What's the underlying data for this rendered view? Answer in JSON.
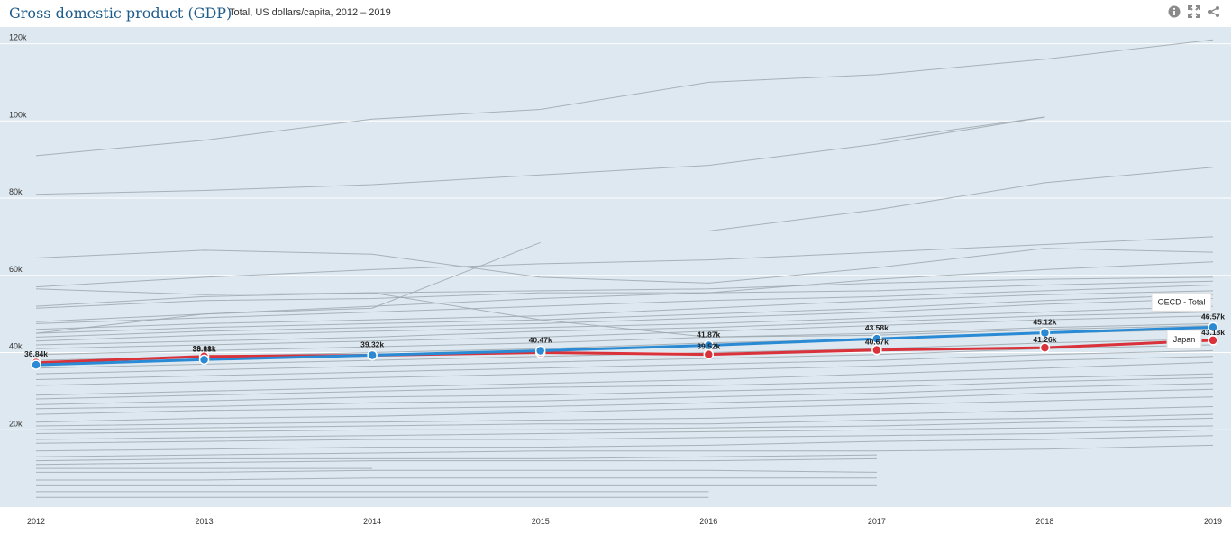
{
  "header": {
    "title": "Gross domestic product (GDP)",
    "subtitle": "Total, US dollars/capita, 2012 – 2019",
    "icons": [
      "info-icon",
      "fullscreen-icon",
      "share-icon"
    ]
  },
  "colors": {
    "background": "#dde8f0",
    "grid": "#ffffff",
    "other_countries": "#9ea7ae",
    "oecd": "#2a8ad4",
    "japan": "#d9323b",
    "title": "#1e5c8c"
  },
  "chart_data": {
    "type": "line",
    "title": "Gross domestic product (GDP)",
    "subtitle": "Total, US dollars/capita, 2012 – 2019",
    "x": [
      2012,
      2013,
      2014,
      2015,
      2016,
      2017,
      2018,
      2019
    ],
    "ylim": [
      0,
      122000
    ],
    "yticks": [
      20000,
      40000,
      60000,
      80000,
      100000,
      120000
    ],
    "ytick_labels": [
      "20k",
      "40k",
      "60k",
      "80k",
      "100k",
      "120k"
    ],
    "grid": true,
    "legend": "none",
    "series": [
      {
        "name": "OECD - Total",
        "highlight": true,
        "color": "#2a8ad4",
        "values": [
          36840,
          38180,
          39320,
          40470,
          41870,
          43580,
          45120,
          46570
        ],
        "labels": [
          "36.84k",
          "38.18k",
          "39.32k",
          "40.47k",
          "41.87k",
          "43.58k",
          "45.12k",
          "46.57k"
        ]
      },
      {
        "name": "Japan",
        "highlight": true,
        "color": "#d9323b",
        "values": [
          37400,
          39010,
          39300,
          40000,
          39520,
          40670,
          41260,
          43180
        ],
        "labels": [
          "",
          "39.01k",
          "",
          "",
          "39.52k",
          "40.67k",
          "41.26k",
          "43.18k"
        ]
      }
    ],
    "background_series": [
      [
        91000,
        95000,
        100500,
        103000,
        110000,
        112000,
        116000,
        121000
      ],
      [
        null,
        null,
        null,
        null,
        null,
        95000,
        101000,
        null
      ],
      [
        81000,
        82000,
        83500,
        86000,
        88500,
        94000,
        101000,
        null
      ],
      [
        null,
        null,
        null,
        null,
        71500,
        77000,
        84000,
        88000
      ],
      [
        45000,
        50000,
        51500,
        68500,
        null,
        null,
        null,
        null
      ],
      [
        64500,
        66500,
        65500,
        59500,
        58000,
        62000,
        67000,
        66000
      ],
      [
        57000,
        59500,
        61500,
        63000,
        64000,
        66000,
        68000,
        70000
      ],
      [
        56500,
        55000,
        55500,
        48500,
        44000,
        44500,
        46000,
        47000
      ],
      [
        51500,
        53500,
        54000,
        55500,
        55500,
        59000,
        61500,
        63500
      ],
      [
        52000,
        54500,
        55500,
        56000,
        56500,
        58000,
        59000,
        59500
      ],
      [
        48000,
        50000,
        52000,
        54000,
        55500,
        56000,
        57500,
        58500
      ],
      [
        47500,
        49000,
        50500,
        52000,
        53500,
        54500,
        56000,
        57500
      ],
      [
        46000,
        47500,
        48500,
        49500,
        51500,
        53500,
        55000,
        56000
      ],
      [
        45000,
        46500,
        47500,
        48500,
        50000,
        51500,
        53500,
        55000
      ],
      [
        44000,
        45500,
        46500,
        47500,
        49000,
        50500,
        52500,
        54000
      ],
      [
        43000,
        44500,
        45500,
        46500,
        47500,
        49000,
        50500,
        52000
      ],
      [
        42000,
        43000,
        44000,
        45500,
        46500,
        48000,
        49500,
        50500
      ],
      [
        41000,
        42000,
        43000,
        44000,
        45500,
        47000,
        48500,
        49500
      ],
      [
        39500,
        40500,
        41500,
        42500,
        44000,
        45000,
        46500,
        47500
      ],
      [
        38000,
        39000,
        40000,
        41000,
        42500,
        43500,
        45000,
        46000
      ],
      [
        36000,
        37000,
        38000,
        39000,
        40000,
        41000,
        42500,
        43500
      ],
      [
        34500,
        35500,
        36500,
        37500,
        38500,
        39500,
        41000,
        42000
      ],
      [
        33000,
        34000,
        35000,
        36000,
        37000,
        38000,
        39500,
        40500
      ],
      [
        31500,
        32500,
        33500,
        34500,
        35500,
        36500,
        38000,
        39000
      ],
      [
        29000,
        30000,
        31000,
        32000,
        33000,
        34500,
        36000,
        37500
      ],
      [
        28000,
        29000,
        30000,
        31000,
        31500,
        32500,
        33500,
        34500
      ],
      [
        26500,
        27500,
        28500,
        29000,
        30000,
        31000,
        32500,
        33500
      ],
      [
        25500,
        26000,
        27000,
        27500,
        28500,
        29500,
        31000,
        32000
      ],
      [
        24000,
        25000,
        25500,
        26000,
        27000,
        28000,
        29500,
        30500
      ],
      [
        22000,
        23000,
        23500,
        24500,
        25500,
        26500,
        27500,
        28500
      ],
      [
        21000,
        21500,
        22000,
        22500,
        23000,
        24000,
        25000,
        26000
      ],
      [
        20000,
        20500,
        21000,
        21500,
        21500,
        22500,
        23000,
        24000
      ],
      [
        19000,
        19500,
        20000,
        20000,
        20500,
        21000,
        22000,
        23000
      ],
      [
        17500,
        18000,
        18500,
        19000,
        19500,
        20000,
        20500,
        21000
      ],
      [
        16500,
        17000,
        17500,
        17500,
        18000,
        18500,
        19000,
        20000
      ],
      [
        14500,
        15000,
        15500,
        15500,
        16000,
        17000,
        17500,
        18500
      ],
      [
        13000,
        13500,
        14000,
        14500,
        14500,
        14500,
        15000,
        16000
      ],
      [
        12000,
        12500,
        12500,
        12500,
        13000,
        13500,
        null,
        null
      ],
      [
        11000,
        11500,
        12000,
        12000,
        12000,
        12500,
        null,
        null
      ],
      [
        10000,
        10000,
        10000,
        null,
        null,
        null,
        null,
        null
      ],
      [
        9000,
        9000,
        9500,
        9500,
        9500,
        9000,
        null,
        null
      ],
      [
        7000,
        7000,
        7500,
        7500,
        7500,
        7500,
        null,
        null
      ],
      [
        5500,
        5500,
        5500,
        5500,
        5500,
        5500,
        null,
        null
      ],
      [
        4000,
        4000,
        4000,
        4000,
        4000,
        null,
        null,
        null
      ],
      [
        2500,
        2500,
        2500,
        2500,
        2500,
        null,
        null,
        null
      ]
    ],
    "end_tags": [
      {
        "series": "OECD - Total",
        "text": "OECD - Total"
      },
      {
        "series": "Japan",
        "text": "Japan"
      }
    ]
  }
}
